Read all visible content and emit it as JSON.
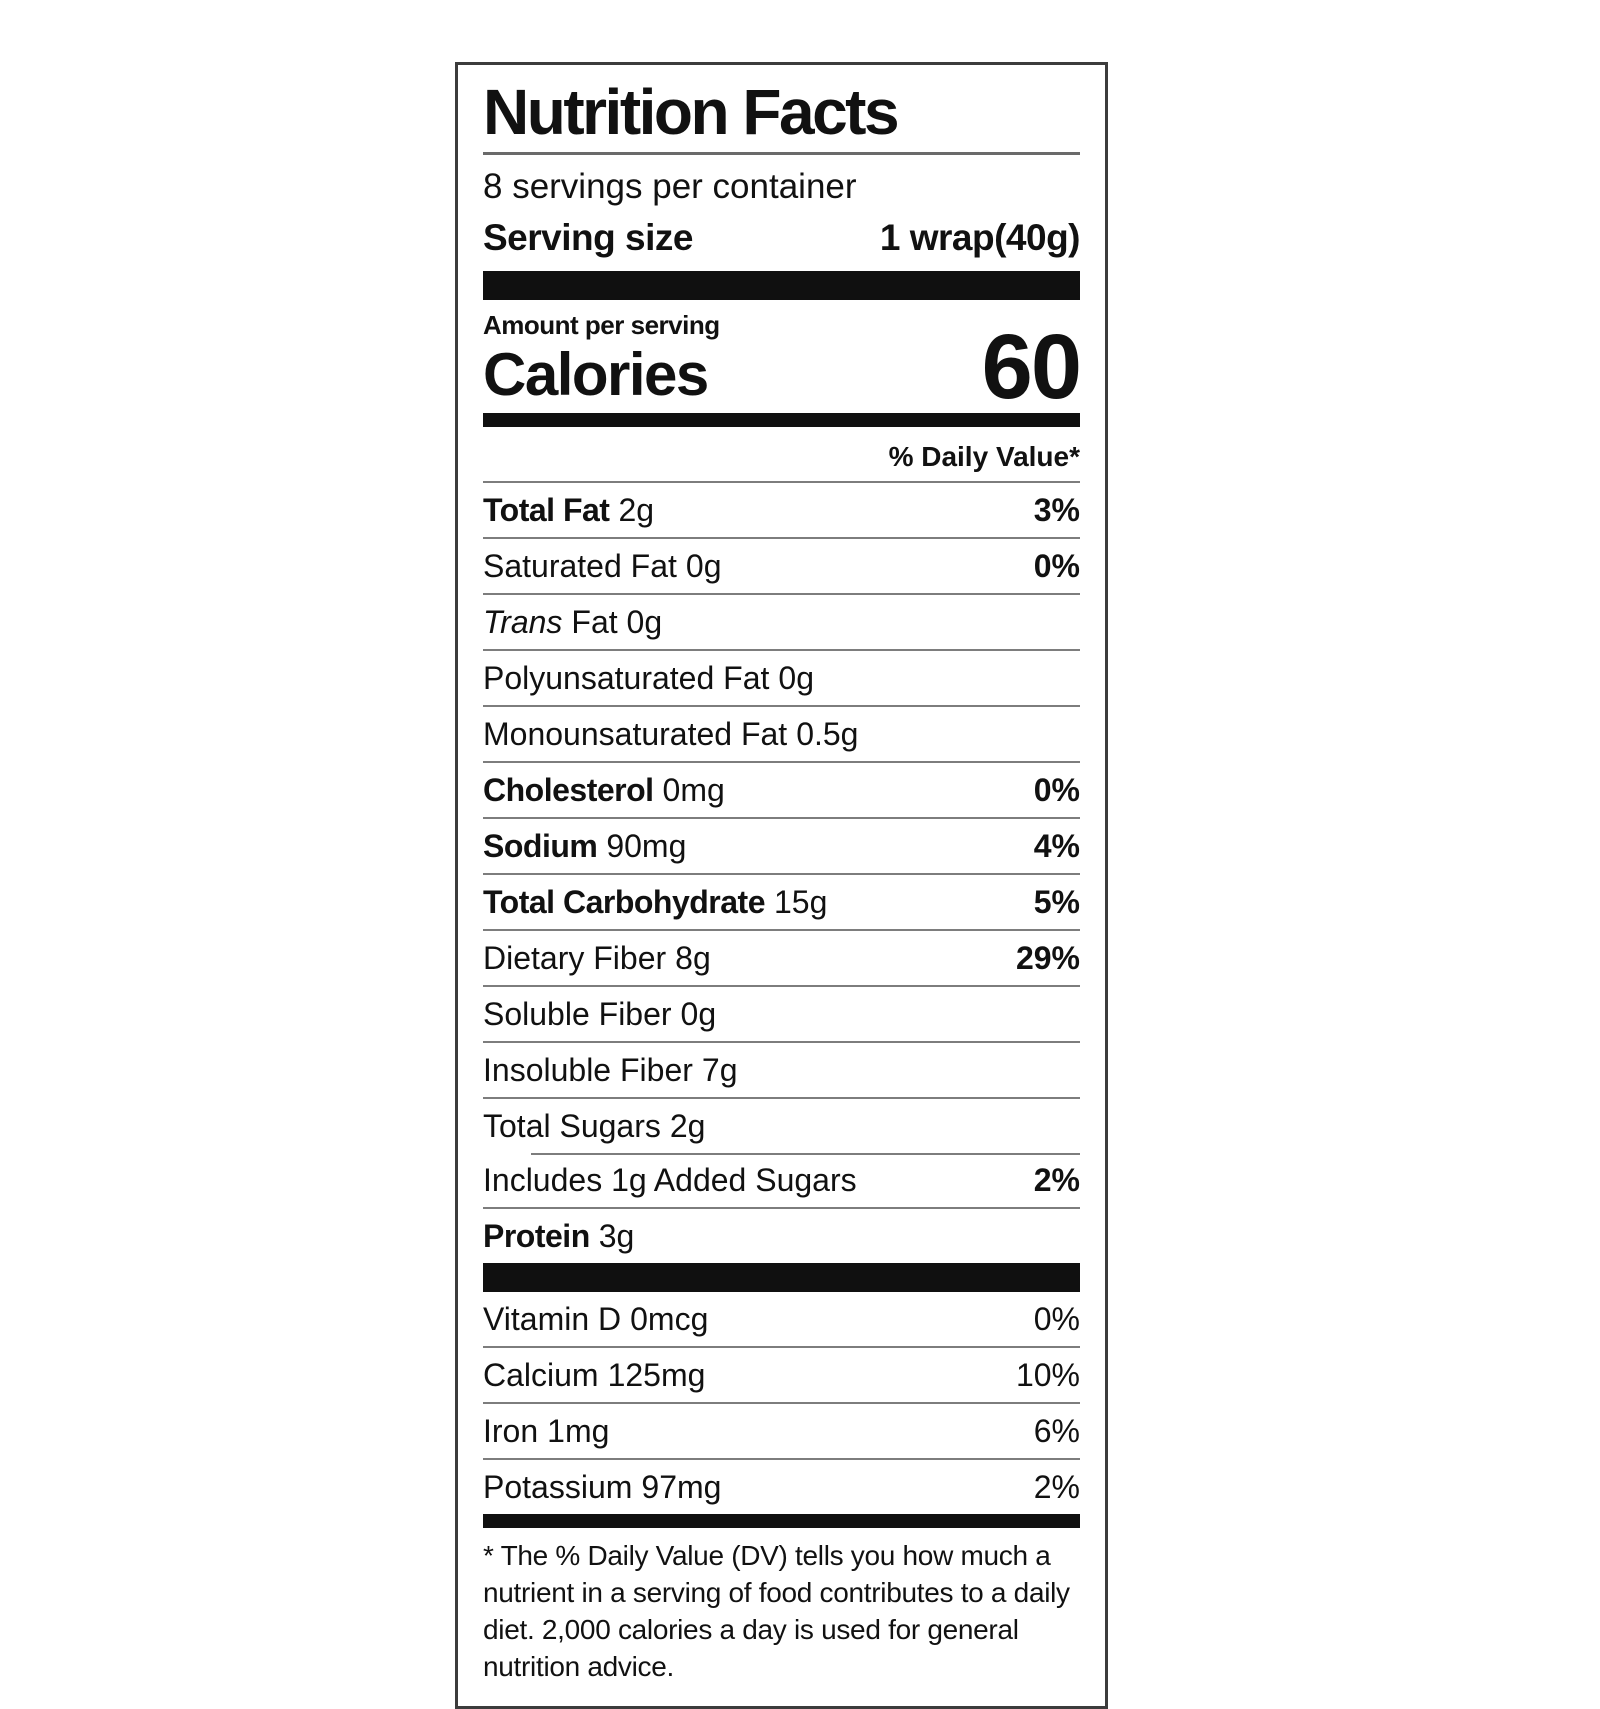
{
  "label": {
    "title": "Nutrition Facts",
    "servings_per_container": "8 servings per container",
    "serving_size_label": "Serving size",
    "serving_size_value": "1 wrap(40g)",
    "amount_per_serving": "Amount per serving",
    "calories_label": "Calories",
    "calories_value": "60",
    "daily_value_header": "% Daily Value*",
    "nutrients": [
      {
        "name": "Total Fat",
        "amount": "2g",
        "dv": "3%"
      },
      {
        "name": "Saturated Fat",
        "amount": "0g",
        "dv": "0%"
      },
      {
        "name": "Trans",
        "amount": "Fat 0g",
        "dv": ""
      },
      {
        "name": "Polyunsaturated Fat",
        "amount": "0g",
        "dv": ""
      },
      {
        "name": "Monounsaturated Fat",
        "amount": "0.5g",
        "dv": ""
      },
      {
        "name": "Cholesterol",
        "amount": "0mg",
        "dv": "0%"
      },
      {
        "name": "Sodium",
        "amount": "90mg",
        "dv": "4%"
      },
      {
        "name": "Total Carbohydrate",
        "amount": "15g",
        "dv": "5%"
      },
      {
        "name": "Dietary Fiber",
        "amount": "8g",
        "dv": "29%"
      },
      {
        "name": "Soluble Fiber",
        "amount": "0g",
        "dv": ""
      },
      {
        "name": "Insoluble Fiber",
        "amount": "7g",
        "dv": ""
      },
      {
        "name": "Total Sugars",
        "amount": "2g",
        "dv": ""
      },
      {
        "name": "Includes 1g Added Sugars",
        "amount": "",
        "dv": "2%"
      },
      {
        "name": "Protein",
        "amount": "3g",
        "dv": ""
      }
    ],
    "micronutrients": [
      {
        "name": "Vitamin D",
        "amount": "0mcg",
        "dv": "0%"
      },
      {
        "name": "Calcium",
        "amount": "125mg",
        "dv": "10%"
      },
      {
        "name": "Iron",
        "amount": "1mg",
        "dv": "6%"
      },
      {
        "name": "Potassium",
        "amount": "97mg",
        "dv": "2%"
      }
    ],
    "footnote": "* The % Daily Value (DV) tells you how much a nutrient in a serving of food contributes to a daily diet. 2,000 calories a day is used for general nutrition advice.",
    "colors": {
      "text": "#111111",
      "bars": "#101010",
      "hairline": "#7d7d7d",
      "background": "#ffffff"
    }
  }
}
